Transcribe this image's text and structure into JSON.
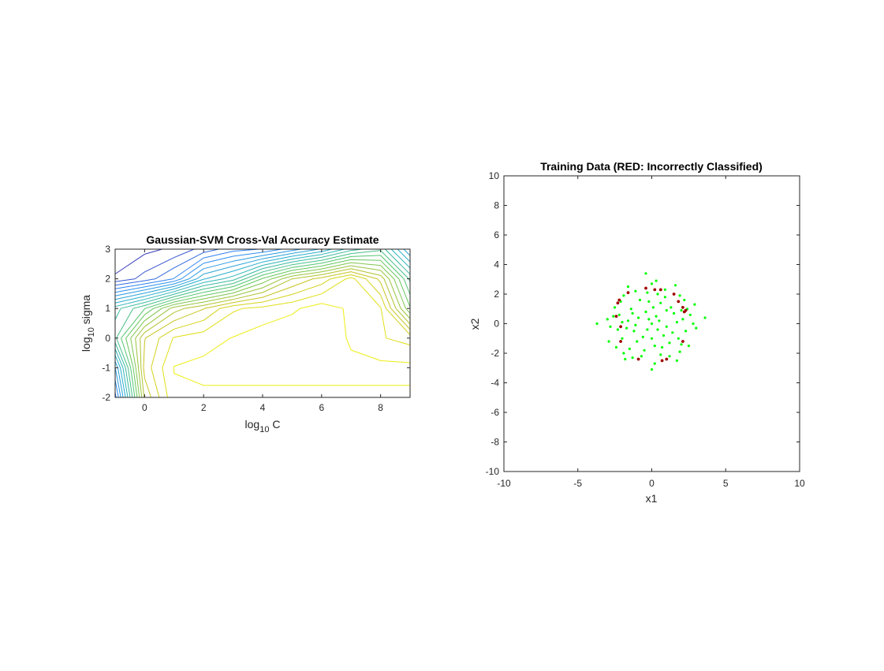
{
  "chart_data": [
    {
      "type": "contour",
      "title": "Gaussian-SVM Cross-Val Accuracy Estimate",
      "xlabel": {
        "prefix": "log",
        "sub": "10",
        "suffix": " C"
      },
      "ylabel": {
        "prefix": "log",
        "sub": "10",
        "suffix": " sigma"
      },
      "xlim": [
        -1,
        9
      ],
      "ylim": [
        -2,
        3
      ],
      "xticks": [
        0,
        2,
        4,
        6,
        8
      ],
      "yticks": [
        -2,
        -1,
        0,
        1,
        2,
        3
      ],
      "x": [
        -1,
        0,
        1,
        2,
        3,
        4,
        5,
        6,
        7,
        8,
        9
      ],
      "y": [
        -2,
        -1,
        0,
        1,
        2,
        3
      ],
      "z": [
        [
          0.2,
          0.73,
          0.88,
          0.88,
          0.88,
          0.88,
          0.88,
          0.88,
          0.88,
          0.88,
          0.88
        ],
        [
          0.3,
          0.78,
          0.89,
          0.9,
          0.9,
          0.9,
          0.9,
          0.9,
          0.9,
          0.9,
          0.9
        ],
        [
          0.5,
          0.76,
          0.85,
          0.87,
          0.89,
          0.91,
          0.92,
          0.93,
          0.88,
          0.85,
          0.83
        ],
        [
          0.45,
          0.55,
          0.7,
          0.76,
          0.84,
          0.86,
          0.88,
          0.91,
          0.88,
          0.85,
          0.6
        ],
        [
          0.1,
          0.15,
          0.22,
          0.38,
          0.45,
          0.6,
          0.72,
          0.78,
          0.86,
          0.75,
          0.5
        ],
        [
          0.05,
          0.08,
          0.1,
          0.15,
          0.2,
          0.22,
          0.28,
          0.35,
          0.45,
          0.5,
          0.3
        ]
      ],
      "colormap": [
        "#3e26a8",
        "#2e87f7",
        "#27b1c7",
        "#5cc863",
        "#c5c123",
        "#f9fb0e"
      ]
    },
    {
      "type": "scatter",
      "title": "Training Data (RED: Incorrectly Classified)",
      "xlabel": "x1",
      "ylabel": "x2",
      "xlim": [
        -10,
        10
      ],
      "ylim": [
        -10,
        10
      ],
      "xticks": [
        -10,
        -5,
        0,
        5,
        10
      ],
      "yticks": [
        -10,
        -8,
        -6,
        -4,
        -2,
        0,
        2,
        4,
        6,
        8,
        10
      ],
      "correct_color": "#00ff00",
      "incorrect_color": "#a00000",
      "points_correct": [
        [
          0.0,
          0.0
        ],
        [
          0.3,
          0.5
        ],
        [
          -0.4,
          0.8
        ],
        [
          1.0,
          -0.2
        ],
        [
          -1.2,
          -0.5
        ],
        [
          0.6,
          1.4
        ],
        [
          -0.8,
          1.6
        ],
        [
          1.5,
          0.7
        ],
        [
          -1.6,
          0.2
        ],
        [
          0.2,
          -1.5
        ],
        [
          -0.5,
          -1.8
        ],
        [
          1.8,
          -1.0
        ],
        [
          -2.0,
          -1.0
        ],
        [
          2.1,
          0.3
        ],
        [
          -2.2,
          0.6
        ],
        [
          0.9,
          2.3
        ],
        [
          -1.1,
          2.2
        ],
        [
          1.2,
          -2.2
        ],
        [
          -1.3,
          -2.3
        ],
        [
          2.4,
          1.0
        ],
        [
          -2.5,
          1.1
        ],
        [
          2.5,
          -1.5
        ],
        [
          -2.4,
          -1.6
        ],
        [
          0.0,
          2.7
        ],
        [
          0.2,
          -2.7
        ],
        [
          2.8,
          0.0
        ],
        [
          -2.8,
          -0.2
        ],
        [
          1.9,
          1.9
        ],
        [
          -1.9,
          1.9
        ],
        [
          1.9,
          -1.9
        ],
        [
          -1.9,
          -2.0
        ],
        [
          0.5,
          0.2
        ],
        [
          -0.3,
          -0.4
        ],
        [
          0.8,
          -0.8
        ],
        [
          -0.9,
          0.4
        ],
        [
          1.3,
          1.1
        ],
        [
          -1.4,
          1.0
        ],
        [
          1.2,
          -1.3
        ],
        [
          -1.0,
          -1.2
        ],
        [
          0.1,
          1.1
        ],
        [
          0.0,
          -1.0
        ],
        [
          1.7,
          0.1
        ],
        [
          -1.7,
          -0.3
        ],
        [
          2.3,
          -0.5
        ],
        [
          -2.3,
          -0.4
        ],
        [
          0.4,
          2.0
        ],
        [
          -0.3,
          2.1
        ],
        [
          0.6,
          -2.1
        ],
        [
          -0.7,
          -2.2
        ],
        [
          2.6,
          0.6
        ],
        [
          -2.6,
          0.5
        ],
        [
          2.2,
          1.6
        ],
        [
          -2.1,
          1.5
        ],
        [
          2.0,
          -1.4
        ],
        [
          -1.5,
          -1.7
        ],
        [
          0.3,
          2.9
        ],
        [
          -0.4,
          3.4
        ],
        [
          0.0,
          -3.1
        ],
        [
          3.0,
          -0.3
        ],
        [
          -3.0,
          0.3
        ],
        [
          -3.7,
          0.0
        ],
        [
          3.6,
          0.4
        ],
        [
          1.6,
          2.6
        ],
        [
          -1.6,
          2.5
        ],
        [
          1.7,
          -2.5
        ],
        [
          -1.8,
          -2.4
        ],
        [
          2.9,
          1.3
        ],
        [
          -2.9,
          -1.2
        ],
        [
          1.0,
          0.9
        ],
        [
          -1.1,
          -0.1
        ],
        [
          0.7,
          -1.6
        ],
        [
          -0.2,
          1.5
        ],
        [
          1.4,
          -0.6
        ],
        [
          -1.3,
          0.7
        ],
        [
          0.9,
          1.8
        ],
        [
          -0.6,
          -0.9
        ],
        [
          2.0,
          0.9
        ],
        [
          -2.0,
          0.1
        ],
        [
          0.4,
          -0.4
        ],
        [
          -0.2,
          0.3
        ]
      ],
      "points_incorrect": [
        [
          -2.2,
          1.6
        ],
        [
          -2.3,
          1.4
        ],
        [
          -1.6,
          2.1
        ],
        [
          -0.4,
          2.4
        ],
        [
          0.2,
          2.3
        ],
        [
          0.6,
          2.3
        ],
        [
          1.5,
          2.0
        ],
        [
          1.8,
          1.5
        ],
        [
          2.1,
          1.1
        ],
        [
          2.2,
          0.8
        ],
        [
          2.3,
          0.9
        ],
        [
          2.1,
          -1.2
        ],
        [
          1.0,
          -2.4
        ],
        [
          0.7,
          -2.5
        ],
        [
          -0.9,
          -2.4
        ],
        [
          -2.1,
          -1.2
        ],
        [
          -2.1,
          -0.2
        ],
        [
          -2.4,
          0.5
        ]
      ]
    }
  ]
}
